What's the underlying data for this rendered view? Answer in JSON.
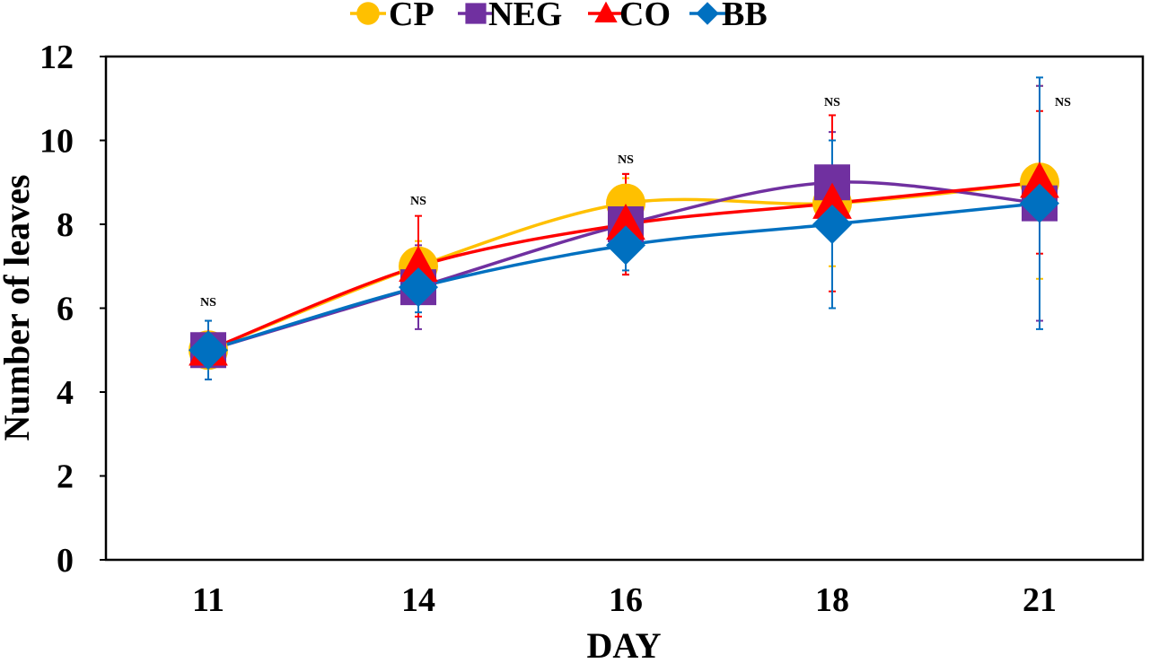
{
  "chart_data": {
    "type": "line",
    "title": "",
    "xlabel": "DAY",
    "ylabel": "Number of leaves",
    "ylim": [
      0,
      12
    ],
    "yticks": [
      0,
      2,
      4,
      6,
      8,
      10,
      12
    ],
    "categories": [
      "11",
      "14",
      "16",
      "18",
      "21"
    ],
    "legend_position": "top",
    "series": [
      {
        "name": "CP",
        "color": "#FFC000",
        "marker": "circle",
        "values": [
          5,
          7,
          8.5,
          8.5,
          9
        ],
        "errors": [
          0.7,
          0.6,
          0.6,
          1.5,
          2.3
        ]
      },
      {
        "name": "NEG",
        "color": "#7030A0",
        "marker": "square",
        "values": [
          5,
          6.5,
          8,
          9,
          8.5
        ],
        "errors": [
          0.7,
          1.0,
          1.2,
          1.2,
          2.8
        ]
      },
      {
        "name": "CO",
        "color": "#FF0000",
        "marker": "triangle",
        "values": [
          5,
          7,
          8,
          8.5,
          9
        ],
        "errors": [
          0.7,
          1.2,
          1.2,
          2.1,
          1.7
        ]
      },
      {
        "name": "BB",
        "color": "#0070C0",
        "marker": "diamond",
        "values": [
          5,
          6.5,
          7.5,
          8,
          8.5
        ],
        "errors": [
          0.7,
          0.6,
          0.6,
          2.0,
          3.0
        ]
      }
    ],
    "annotations": [
      "NS",
      "NS",
      "NS",
      "NS",
      "NS"
    ]
  }
}
